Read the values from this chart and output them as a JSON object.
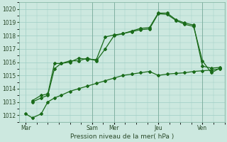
{
  "xlabel": "Pression niveau de la mer( hPa )",
  "background_color": "#cce8df",
  "grid_color": "#9ecec4",
  "line_color": "#1a6b1a",
  "ylim": [
    1011.5,
    1020.5
  ],
  "xlim": [
    -0.3,
    9.0
  ],
  "xtick_labels": [
    "Mar",
    "Sam",
    "Mer",
    "Jeu",
    "Ven"
  ],
  "xtick_positions": [
    0,
    3,
    4,
    6,
    8
  ],
  "series": [
    {
      "x": [
        0,
        0.3,
        0.7,
        1.0,
        1.3,
        1.6,
        2.0,
        2.4,
        2.8,
        3.2,
        3.6,
        4.0,
        4.4,
        4.8,
        5.2,
        5.6,
        6.0,
        6.4,
        6.8,
        7.2,
        7.6,
        8.0,
        8.4,
        8.8
      ],
      "y": [
        1012.1,
        1011.8,
        1012.1,
        1013.0,
        1013.3,
        1013.5,
        1013.8,
        1014.0,
        1014.2,
        1014.4,
        1014.6,
        1014.8,
        1015.0,
        1015.1,
        1015.2,
        1015.3,
        1015.0,
        1015.1,
        1015.15,
        1015.2,
        1015.3,
        1015.35,
        1015.4,
        1015.5
      ],
      "marker": "D",
      "markersize": 2.0,
      "linewidth": 0.9
    },
    {
      "x": [
        0.3,
        0.7,
        1.0,
        1.3,
        1.6,
        2.0,
        2.4,
        2.8,
        3.2,
        3.6,
        4.0,
        4.4,
        4.8,
        5.2,
        5.6,
        6.0,
        6.4,
        6.8,
        7.2,
        7.6,
        8.0,
        8.4,
        8.8
      ],
      "y": [
        1013.0,
        1013.3,
        1013.5,
        1015.5,
        1015.9,
        1016.1,
        1016.1,
        1016.3,
        1016.1,
        1017.0,
        1018.0,
        1018.15,
        1018.3,
        1018.45,
        1018.5,
        1019.65,
        1019.6,
        1019.15,
        1018.85,
        1018.7,
        1016.1,
        1015.2,
        1015.55
      ],
      "marker": "D",
      "markersize": 2.0,
      "linewidth": 0.9
    },
    {
      "x": [
        0.3,
        0.7,
        1.0,
        1.3,
        1.6,
        2.0,
        2.4,
        2.8,
        3.2,
        3.6,
        4.0,
        4.4,
        4.8,
        5.2,
        5.6,
        6.0,
        6.4,
        6.8,
        7.2,
        7.6,
        8.0,
        8.4,
        8.8
      ],
      "y": [
        1013.1,
        1013.5,
        1013.6,
        1015.9,
        1015.9,
        1016.0,
        1016.3,
        1016.2,
        1016.2,
        1017.9,
        1018.05,
        1018.15,
        1018.35,
        1018.55,
        1018.6,
        1019.7,
        1019.7,
        1019.2,
        1018.95,
        1018.8,
        1015.7,
        1015.55,
        1015.6
      ],
      "marker": "D",
      "markersize": 2.0,
      "linewidth": 0.9
    }
  ],
  "vlines": [
    3,
    4,
    6,
    8
  ],
  "ytick_values": [
    1012,
    1013,
    1014,
    1015,
    1016,
    1017,
    1018,
    1019,
    1020
  ],
  "ytick_fontsize": 5.5,
  "xtick_fontsize": 5.5,
  "xlabel_fontsize": 6.5
}
